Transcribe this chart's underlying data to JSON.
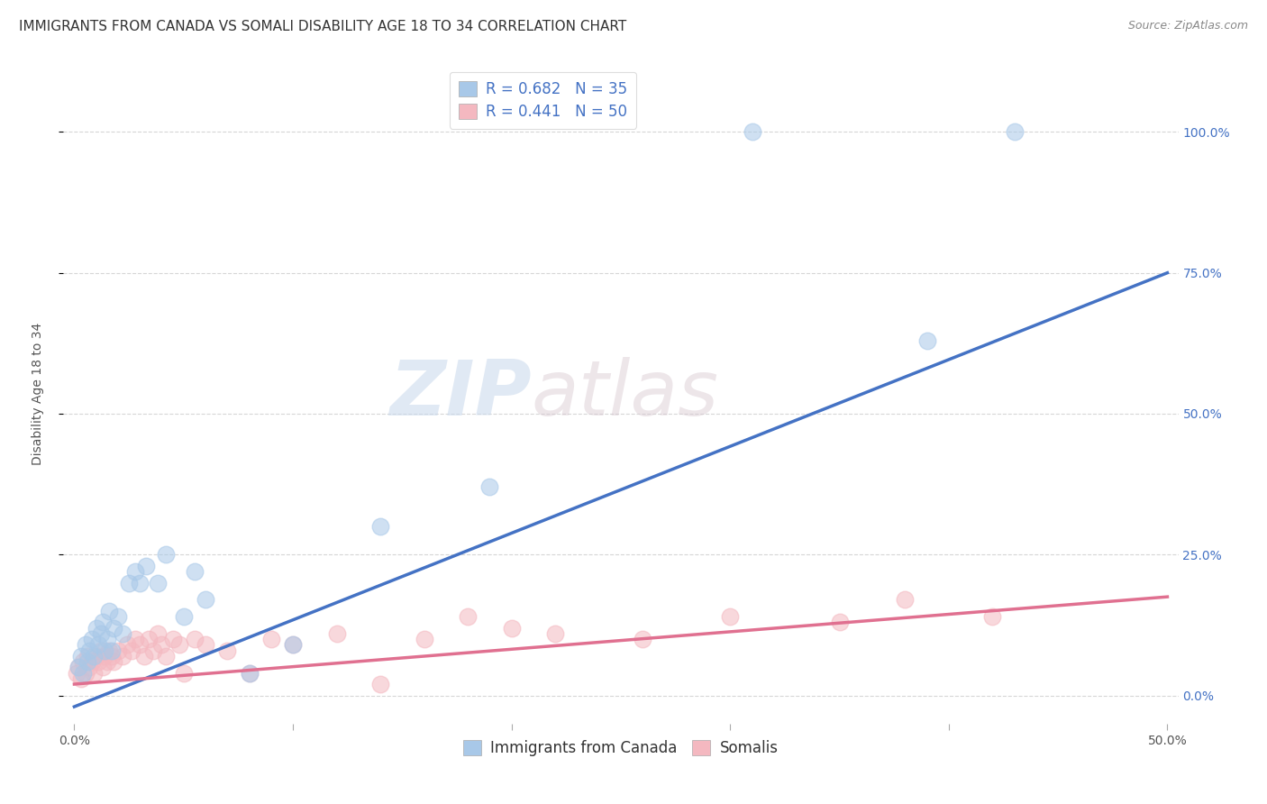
{
  "title": "IMMIGRANTS FROM CANADA VS SOMALI DISABILITY AGE 18 TO 34 CORRELATION CHART",
  "source": "Source: ZipAtlas.com",
  "ylabel": "Disability Age 18 to 34",
  "xlim": [
    -0.005,
    0.505
  ],
  "ylim": [
    -0.05,
    1.12
  ],
  "xticks": [
    0.0,
    0.1,
    0.2,
    0.3,
    0.4,
    0.5
  ],
  "xtick_labels": [
    "0.0%",
    "",
    "",
    "",
    "",
    "50.0%"
  ],
  "ytick_labels": [
    "0.0%",
    "25.0%",
    "50.0%",
    "75.0%",
    "100.0%"
  ],
  "yticks": [
    0.0,
    0.25,
    0.5,
    0.75,
    1.0
  ],
  "canada_R": 0.682,
  "canada_N": 35,
  "somali_R": 0.441,
  "somali_N": 50,
  "canada_color": "#a8c8e8",
  "somali_color": "#f4b8c0",
  "canada_line_color": "#4472c4",
  "somali_line_color": "#e07090",
  "canada_line_x0": 0.0,
  "canada_line_y0": -0.02,
  "canada_line_x1": 0.5,
  "canada_line_y1": 0.75,
  "somali_line_x0": 0.0,
  "somali_line_y0": 0.02,
  "somali_line_x1": 0.5,
  "somali_line_y1": 0.175,
  "canada_scatter_x": [
    0.002,
    0.003,
    0.004,
    0.005,
    0.006,
    0.007,
    0.008,
    0.009,
    0.01,
    0.011,
    0.012,
    0.013,
    0.014,
    0.015,
    0.016,
    0.017,
    0.018,
    0.02,
    0.022,
    0.025,
    0.028,
    0.03,
    0.033,
    0.038,
    0.042,
    0.05,
    0.055,
    0.06,
    0.08,
    0.1,
    0.14,
    0.19,
    0.31,
    0.39,
    0.43
  ],
  "canada_scatter_y": [
    0.05,
    0.07,
    0.04,
    0.09,
    0.06,
    0.08,
    0.1,
    0.07,
    0.12,
    0.09,
    0.11,
    0.13,
    0.08,
    0.1,
    0.15,
    0.08,
    0.12,
    0.14,
    0.11,
    0.2,
    0.22,
    0.2,
    0.23,
    0.2,
    0.25,
    0.14,
    0.22,
    0.17,
    0.04,
    0.09,
    0.3,
    0.37,
    1.0,
    0.63,
    1.0
  ],
  "somali_scatter_x": [
    0.001,
    0.002,
    0.003,
    0.004,
    0.005,
    0.006,
    0.007,
    0.008,
    0.009,
    0.01,
    0.011,
    0.012,
    0.013,
    0.014,
    0.015,
    0.016,
    0.017,
    0.018,
    0.02,
    0.022,
    0.024,
    0.026,
    0.028,
    0.03,
    0.032,
    0.034,
    0.036,
    0.038,
    0.04,
    0.042,
    0.045,
    0.048,
    0.05,
    0.055,
    0.06,
    0.07,
    0.08,
    0.09,
    0.1,
    0.12,
    0.14,
    0.16,
    0.18,
    0.2,
    0.22,
    0.26,
    0.3,
    0.35,
    0.38,
    0.42
  ],
  "somali_scatter_y": [
    0.04,
    0.05,
    0.03,
    0.06,
    0.04,
    0.07,
    0.05,
    0.06,
    0.04,
    0.07,
    0.06,
    0.08,
    0.05,
    0.07,
    0.06,
    0.08,
    0.07,
    0.06,
    0.08,
    0.07,
    0.09,
    0.08,
    0.1,
    0.09,
    0.07,
    0.1,
    0.08,
    0.11,
    0.09,
    0.07,
    0.1,
    0.09,
    0.04,
    0.1,
    0.09,
    0.08,
    0.04,
    0.1,
    0.09,
    0.11,
    0.02,
    0.1,
    0.14,
    0.12,
    0.11,
    0.1,
    0.14,
    0.13,
    0.17,
    0.14
  ],
  "watermark_zip": "ZIP",
  "watermark_atlas": "atlas",
  "background_color": "#ffffff",
  "grid_color": "#cccccc",
  "tick_color_right": "#4472c4",
  "title_fontsize": 11,
  "axis_label_fontsize": 10,
  "tick_fontsize": 10,
  "legend_fontsize": 12
}
